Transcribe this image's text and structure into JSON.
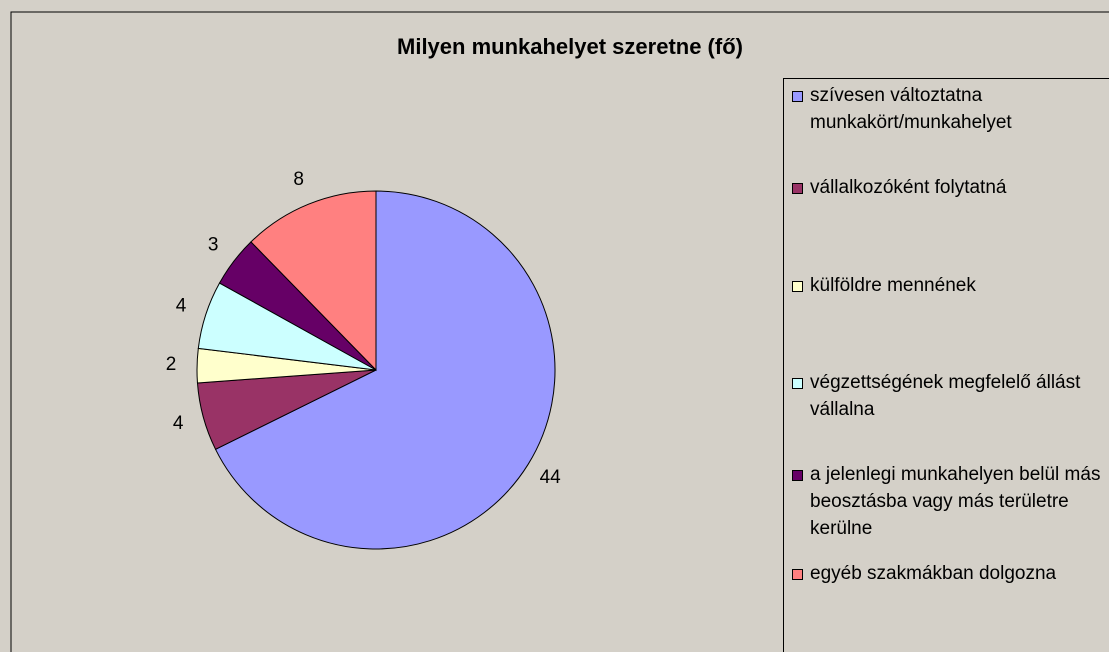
{
  "chart_data": {
    "type": "pie",
    "title": "Milyen munkahelyet szeretne (fő)",
    "categories": [
      "szívesen változtatna munkakört/munkahelyet",
      "vállalkozóként folytatná",
      "külföldre mennének",
      "végzettségének megfelelő állást vállalna",
      "a jelenlegi munkahelyen belül más beosztásba vagy más területre kerülne",
      "egyéb szakmákban dolgozna"
    ],
    "values": [
      44,
      4,
      2,
      4,
      3,
      8
    ],
    "colors": [
      "#9999ff",
      "#993366",
      "#ffffcc",
      "#ccffff",
      "#660066",
      "#ff8080"
    ],
    "legend": "right"
  }
}
